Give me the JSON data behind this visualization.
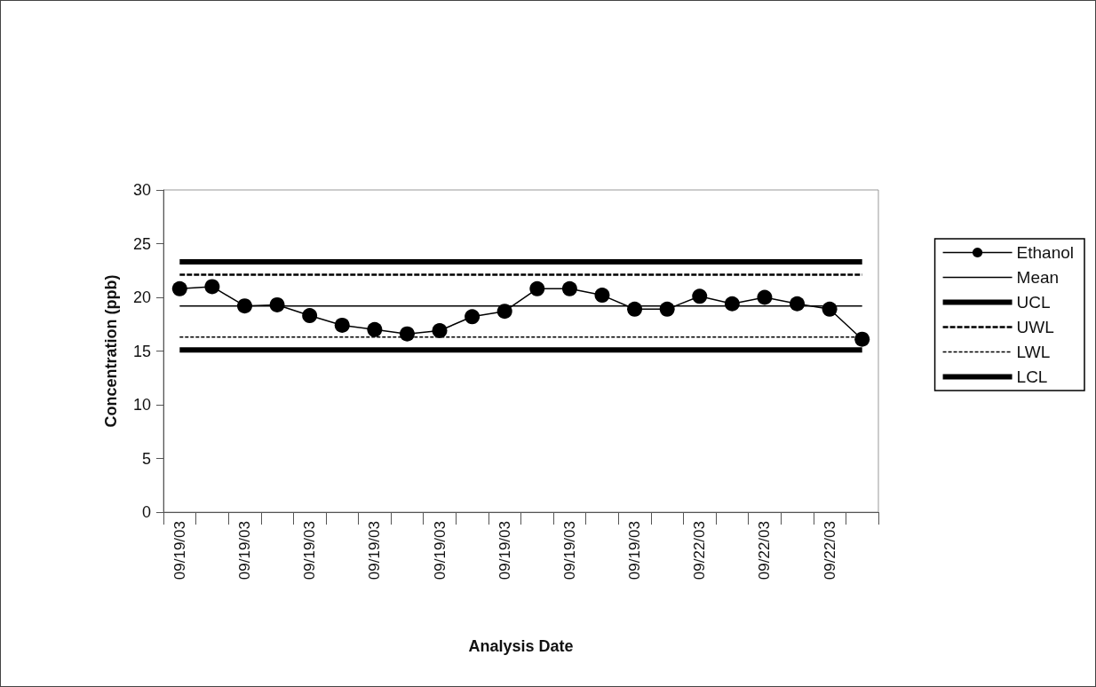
{
  "chart_data": {
    "type": "line",
    "xlabel": "Analysis Date",
    "ylabel": "Concentration (ppb)",
    "categories": [
      "09/19/03",
      null,
      "09/19/03",
      null,
      "09/19/03",
      null,
      "09/19/03",
      null,
      "09/19/03",
      null,
      "09/19/03",
      null,
      "09/19/03",
      null,
      "09/19/03",
      null,
      "09/22/03",
      null,
      "09/22/03",
      null,
      "09/22/03",
      null
    ],
    "series": [
      {
        "name": "Ethanol",
        "color": "#000000",
        "marker": "circle",
        "line_style": "solid",
        "values": [
          20.8,
          21.0,
          19.2,
          19.3,
          18.3,
          17.4,
          17.0,
          16.6,
          16.9,
          18.2,
          18.7,
          20.8,
          20.8,
          20.2,
          18.9,
          18.9,
          20.1,
          19.4,
          20.0,
          19.4,
          18.9,
          16.1
        ]
      },
      {
        "name": "Mean",
        "color": "#000000",
        "marker": "none",
        "line_style": "solid",
        "values": [
          19.2,
          19.2,
          19.2,
          19.2,
          19.2,
          19.2,
          19.2,
          19.2,
          19.2,
          19.2,
          19.2,
          19.2,
          19.2,
          19.2,
          19.2,
          19.2,
          19.2,
          19.2,
          19.2,
          19.2,
          19.2,
          19.2
        ]
      },
      {
        "name": "UCL",
        "color": "#000000",
        "marker": "none",
        "line_style": "solid",
        "values": [
          23.3,
          23.3,
          23.3,
          23.3,
          23.3,
          23.3,
          23.3,
          23.3,
          23.3,
          23.3,
          23.3,
          23.3,
          23.3,
          23.3,
          23.3,
          23.3,
          23.3,
          23.3,
          23.3,
          23.3,
          23.3,
          23.3
        ]
      },
      {
        "name": "UWL",
        "color": "#000000",
        "marker": "none",
        "line_style": "dashed",
        "values": [
          22.1,
          22.1,
          22.1,
          22.1,
          22.1,
          22.1,
          22.1,
          22.1,
          22.1,
          22.1,
          22.1,
          22.1,
          22.1,
          22.1,
          22.1,
          22.1,
          22.1,
          22.1,
          22.1,
          22.1,
          22.1,
          22.1
        ]
      },
      {
        "name": "LWL",
        "color": "#000000",
        "marker": "none",
        "line_style": "dashed",
        "values": [
          16.3,
          16.3,
          16.3,
          16.3,
          16.3,
          16.3,
          16.3,
          16.3,
          16.3,
          16.3,
          16.3,
          16.3,
          16.3,
          16.3,
          16.3,
          16.3,
          16.3,
          16.3,
          16.3,
          16.3,
          16.3,
          16.3
        ]
      },
      {
        "name": "LCL",
        "color": "#000000",
        "marker": "none",
        "line_style": "solid",
        "values": [
          15.1,
          15.1,
          15.1,
          15.1,
          15.1,
          15.1,
          15.1,
          15.1,
          15.1,
          15.1,
          15.1,
          15.1,
          15.1,
          15.1,
          15.1,
          15.1,
          15.1,
          15.1,
          15.1,
          15.1,
          15.1,
          15.1
        ]
      }
    ],
    "ylim": [
      0,
      30
    ],
    "yticks": [
      0,
      5,
      10,
      15,
      20,
      25,
      30
    ],
    "grid": false,
    "legend": "right"
  }
}
